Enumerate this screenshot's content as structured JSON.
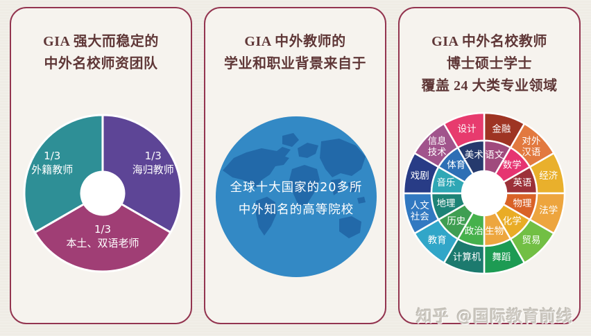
{
  "colors": {
    "page_bg": "#efece5",
    "card_bg": "#f6f3ee",
    "card_border": "#93344f",
    "title_text": "#5f3737",
    "watermark_text": "#c9c4bc"
  },
  "cards": [
    {
      "name": "faculty-team",
      "title": "GIA 强大而稳定的\n中外名校师资团队"
    },
    {
      "name": "teacher-background",
      "title": "GIA 中外教师的\n学业和职业背景来自于",
      "globe": {
        "lines": [
          "全球十大国家的20多所",
          "中外知名的高等院校"
        ],
        "circle_color": "#3389c5",
        "map_color": "#2269a9",
        "text_color": "#ffffff"
      }
    },
    {
      "name": "majors-coverage",
      "title": "GIA 中外名校教师\n博士硕士学士\n覆盖 24 大类专业领域"
    }
  ],
  "chart_data": [
    {
      "type": "pie",
      "variant": "donut",
      "card": "faculty-team",
      "start_angle_deg": 0,
      "slices": [
        {
          "label": "海归教师",
          "value_label": "1/3",
          "fraction": 0.3333,
          "color": "#5d4596"
        },
        {
          "label": "本土、双语老师",
          "value_label": "1/3",
          "fraction": 0.3333,
          "color": "#a03e75"
        },
        {
          "label": "外籍教师",
          "value_label": "1/3",
          "fraction": 0.3333,
          "color": "#2e8f96"
        }
      ]
    },
    {
      "type": "pie",
      "variant": "two-ring-sunburst",
      "card": "majors-coverage",
      "sector_count": 12,
      "subject_count": 24,
      "sectors": [
        {
          "outer": {
            "label": "金融",
            "color": "#9e3423"
          },
          "inner": {
            "label": "语文",
            "color": "#a04a7d"
          }
        },
        {
          "outer": {
            "label": "对外汉语",
            "color": "#e2793f",
            "two_line": true
          },
          "inner": {
            "label": "数学",
            "color": "#e63471"
          }
        },
        {
          "outer": {
            "label": "经济",
            "color": "#e9b02c"
          },
          "inner": {
            "label": "英语",
            "color": "#9c3138"
          }
        },
        {
          "outer": {
            "label": "法学",
            "color": "#eda53e"
          },
          "inner": {
            "label": "物理",
            "color": "#d96227"
          }
        },
        {
          "outer": {
            "label": "贸易",
            "color": "#72bf44"
          },
          "inner": {
            "label": "化学",
            "color": "#e9ac26"
          }
        },
        {
          "outer": {
            "label": "舞蹈",
            "color": "#1d9b53"
          },
          "inner": {
            "label": "生物",
            "color": "#eda63f"
          }
        },
        {
          "outer": {
            "label": "计算机",
            "color": "#1c7a6e"
          },
          "inner": {
            "label": "政治",
            "color": "#46b14c"
          }
        },
        {
          "outer": {
            "label": "教育",
            "color": "#31a6c8"
          },
          "inner": {
            "label": "历史",
            "color": "#3f9e52"
          }
        },
        {
          "outer": {
            "label": "人文社会",
            "color": "#3179c1",
            "two_line": true
          },
          "inner": {
            "label": "地理",
            "color": "#1d8376"
          }
        },
        {
          "outer": {
            "label": "戏剧",
            "color": "#283c86"
          },
          "inner": {
            "label": "音乐",
            "color": "#2fa7b5"
          }
        },
        {
          "outer": {
            "label": "信息技术",
            "color": "#a1548c",
            "two_line": true
          },
          "inner": {
            "label": "体育",
            "color": "#2d6fb5"
          }
        },
        {
          "outer": {
            "label": "设计",
            "color": "#e73b6e"
          },
          "inner": {
            "label": "美术",
            "color": "#263a6d"
          }
        }
      ]
    }
  ],
  "watermark": {
    "logo": "知乎",
    "handle": "@国际教育前线"
  }
}
